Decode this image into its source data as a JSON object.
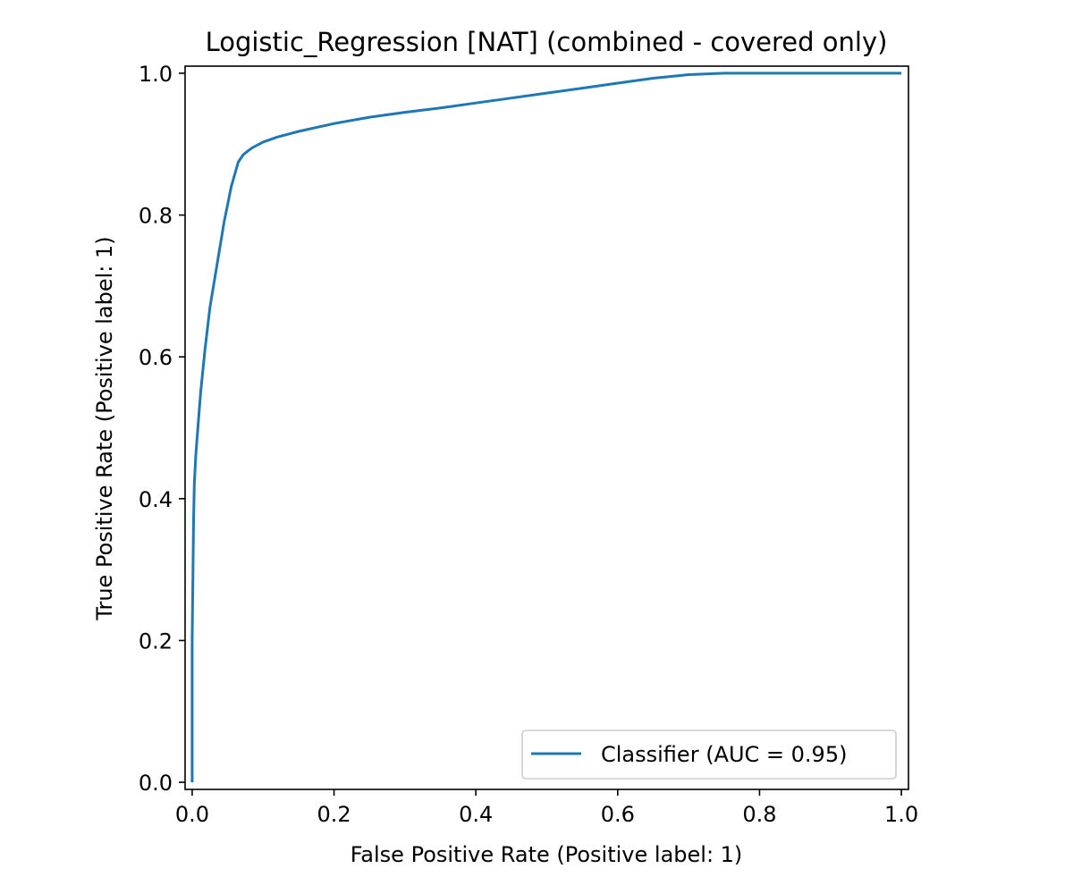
{
  "chart_data": {
    "type": "line",
    "title": "Logistic_Regression [NAT] (combined - covered only)",
    "xlabel": "False Positive Rate (Positive label: 1)",
    "ylabel": "True Positive Rate (Positive label: 1)",
    "xlim": [
      -0.01,
      1.01
    ],
    "ylim": [
      -0.01,
      1.01
    ],
    "xticks": [
      0.0,
      0.2,
      0.4,
      0.6,
      0.8,
      1.0
    ],
    "xtick_labels": [
      "0.0",
      "0.2",
      "0.4",
      "0.6",
      "0.8",
      "1.0"
    ],
    "yticks": [
      0.0,
      0.2,
      0.4,
      0.6,
      0.8,
      1.0
    ],
    "ytick_labels": [
      "0.0",
      "0.2",
      "0.4",
      "0.6",
      "0.8",
      "1.0"
    ],
    "grid": false,
    "legend_position": "lower-right",
    "series": [
      {
        "name": "Classifier (AUC = 0.95)",
        "color": "#1f77b4",
        "x": [
          0.0,
          0.0,
          0.002,
          0.003,
          0.005,
          0.008,
          0.012,
          0.018,
          0.025,
          0.035,
          0.045,
          0.055,
          0.065,
          0.072,
          0.078,
          0.085,
          0.1,
          0.12,
          0.15,
          0.2,
          0.25,
          0.3,
          0.35,
          0.4,
          0.45,
          0.5,
          0.55,
          0.6,
          0.65,
          0.7,
          0.75,
          0.8,
          0.85,
          0.9,
          0.95,
          1.0
        ],
        "y": [
          0.0,
          0.2,
          0.37,
          0.42,
          0.46,
          0.5,
          0.55,
          0.61,
          0.67,
          0.73,
          0.79,
          0.84,
          0.875,
          0.885,
          0.89,
          0.895,
          0.903,
          0.91,
          0.918,
          0.929,
          0.938,
          0.945,
          0.951,
          0.958,
          0.965,
          0.972,
          0.979,
          0.986,
          0.993,
          0.998,
          1.0,
          1.0,
          1.0,
          1.0,
          1.0,
          1.0
        ]
      }
    ]
  }
}
